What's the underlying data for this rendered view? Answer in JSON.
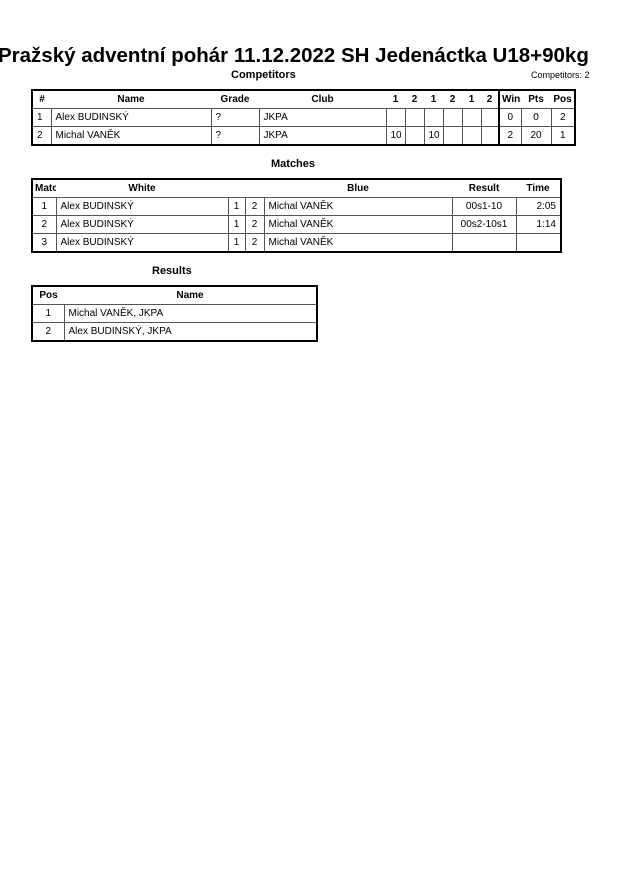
{
  "title": "Pražský adventní pohár  11.12.2022  SH Jedenáctka   U18+90kg",
  "competitors": {
    "heading": "Competitors",
    "count_label": "Competitors: 2",
    "headers": [
      "#",
      "Name",
      "Grade",
      "Club",
      "1",
      "2",
      "1",
      "2",
      "1",
      "2",
      "Wins",
      "Pts",
      "Pos"
    ],
    "rows": [
      [
        "1",
        "Alex BUDINSKÝ",
        "?",
        "JKPA",
        "",
        "",
        "",
        "",
        "",
        "",
        "0",
        "0",
        "2"
      ],
      [
        "2",
        "Michal VANĚK",
        "?",
        "JKPA",
        "10",
        "",
        "10",
        "",
        "",
        "",
        "2",
        "20",
        "1"
      ]
    ]
  },
  "matches": {
    "heading": "Matches",
    "headers": [
      "Match",
      "White",
      "",
      "",
      "Blue",
      "Result",
      "Time"
    ],
    "rows": [
      [
        "1",
        "Alex BUDINSKÝ",
        "1",
        "2",
        "Michal VANĚK",
        "00s1-10",
        "2:05"
      ],
      [
        "2",
        "Alex BUDINSKÝ",
        "1",
        "2",
        "Michal VANĚK",
        "00s2-10s1",
        "1:14"
      ],
      [
        "3",
        "Alex BUDINSKÝ",
        "1",
        "2",
        "Michal VANĚK",
        "",
        ""
      ]
    ]
  },
  "results": {
    "heading": "Results",
    "headers": [
      "Pos",
      "Name"
    ],
    "rows": [
      [
        "1",
        "Michal VANĚK, JKPA"
      ],
      [
        "2",
        "Alex BUDINSKÝ, JKPA"
      ]
    ]
  }
}
